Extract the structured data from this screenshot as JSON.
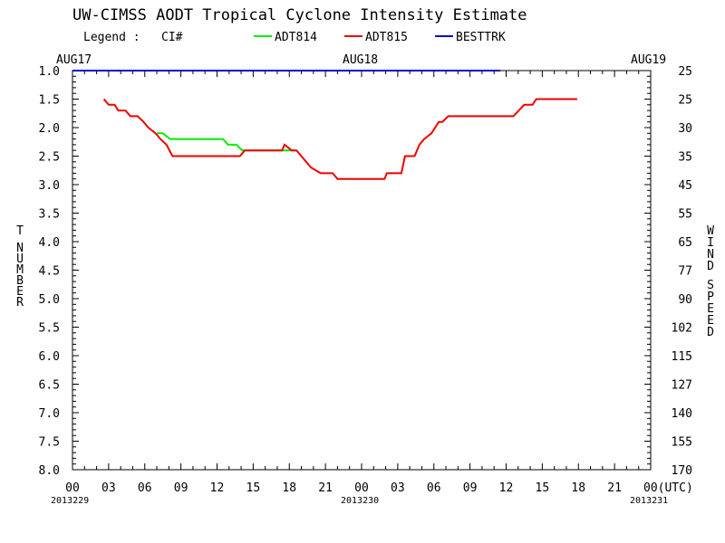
{
  "chart_data": {
    "type": "line",
    "title": "UW-CIMSS AODT Tropical Cyclone Intensity Estimate",
    "legend": {
      "label": "Legend :",
      "key": "CI#",
      "entries": [
        {
          "name": "ADT814",
          "color": "#00ee00"
        },
        {
          "name": "ADT815",
          "color": "#ee0000"
        },
        {
          "name": "BESTTRK",
          "color": "#0000cc"
        }
      ]
    },
    "date_labels": [
      "AUG17",
      "AUG18",
      "AUG19"
    ],
    "x_tick_labels": [
      "00",
      "03",
      "06",
      "09",
      "12",
      "15",
      "18",
      "21",
      "00",
      "03",
      "06",
      "09",
      "12",
      "15",
      "18",
      "21",
      "00(UTC)"
    ],
    "x_sublabels": [
      "2013229",
      "2013230",
      "2013231"
    ],
    "x_range_hours": [
      0,
      48
    ],
    "y_left_label": "T NUMBER",
    "y_left_ticks": [
      "1.0",
      "1.5",
      "2.0",
      "2.5",
      "3.0",
      "3.5",
      "4.0",
      "4.5",
      "5.0",
      "5.5",
      "6.0",
      "6.5",
      "7.0",
      "7.5",
      "8.0"
    ],
    "y_right_label": "WIND SPEED",
    "y_right_ticks": [
      "25",
      "25",
      "30",
      "35",
      "45",
      "55",
      "65",
      "77",
      "90",
      "102",
      "115",
      "127",
      "140",
      "155",
      "170"
    ],
    "ylim": [
      1.0,
      8.0
    ],
    "y_inverted": true,
    "series": [
      {
        "name": "ADT814",
        "color": "#00ee00",
        "x": [
          7.0,
          7.5,
          8.1,
          8.3,
          12.5,
          12.9,
          13.6,
          14.1,
          14.6,
          18.5
        ],
        "y": [
          2.1,
          2.1,
          2.2,
          2.2,
          2.2,
          2.3,
          2.3,
          2.4,
          2.4,
          2.4
        ]
      },
      {
        "name": "ADT815",
        "color": "#ee0000",
        "x": [
          2.6,
          3.0,
          3.5,
          3.8,
          4.4,
          4.8,
          5.4,
          5.9,
          6.3,
          6.9,
          7.3,
          7.8,
          8.3,
          8.6,
          13.9,
          14.3,
          14.7,
          17.4,
          17.6,
          18.2,
          18.6,
          19.8,
          20.6,
          21.6,
          22.0,
          25.3,
          25.9,
          26.1,
          27.3,
          27.6,
          28.4,
          28.8,
          29.2,
          29.8,
          30.4,
          30.7,
          31.2,
          31.5,
          31.8,
          36.6,
          37.5,
          37.8,
          38.2,
          38.5,
          38.9,
          39.4,
          41.9
        ],
        "y": [
          1.5,
          1.6,
          1.6,
          1.7,
          1.7,
          1.8,
          1.8,
          1.9,
          2.0,
          2.1,
          2.2,
          2.3,
          2.5,
          2.5,
          2.5,
          2.4,
          2.4,
          2.4,
          2.3,
          2.4,
          2.4,
          2.7,
          2.8,
          2.8,
          2.9,
          2.9,
          2.9,
          2.8,
          2.8,
          2.5,
          2.5,
          2.3,
          2.2,
          2.1,
          1.9,
          1.9,
          1.8,
          1.8,
          1.8,
          1.8,
          1.6,
          1.6,
          1.6,
          1.5,
          1.5,
          1.5,
          1.5
        ]
      },
      {
        "name": "BESTTRK",
        "color": "#0000cc",
        "x": [
          0,
          35.5
        ],
        "y": [
          1.0,
          1.0
        ]
      }
    ]
  }
}
